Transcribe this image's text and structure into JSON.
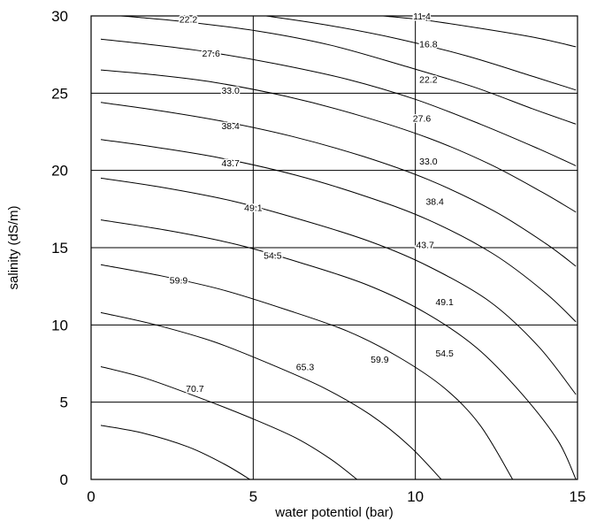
{
  "chart_data": {
    "type": "contour",
    "title": "",
    "xlabel": "water potentiol (bar)",
    "ylabel": "salinity (dS/m)",
    "xlim": [
      0,
      15
    ],
    "ylim": [
      0,
      30
    ],
    "xticks": [
      "0",
      "5",
      "10",
      "15"
    ],
    "yticks": [
      "0",
      "5",
      "10",
      "15",
      "20",
      "25",
      "30"
    ],
    "grid": true,
    "contours": [
      {
        "label": "",
        "points": [
          [
            0.3,
            3.5
          ],
          [
            1.6,
            3.0
          ],
          [
            3.0,
            2.1
          ],
          [
            4.1,
            1.0
          ],
          [
            4.9,
            0
          ]
        ]
      },
      {
        "label": "70.7",
        "points": [
          [
            0.3,
            7.3
          ],
          [
            1.6,
            6.6
          ],
          [
            3.2,
            5.4
          ],
          [
            4.9,
            4.0
          ],
          [
            6.3,
            2.7
          ],
          [
            7.4,
            1.3
          ],
          [
            8.2,
            0
          ]
        ]
      },
      {
        "label": "65.3",
        "points": [
          [
            0.3,
            10.8
          ],
          [
            2.0,
            10.0
          ],
          [
            3.8,
            8.9
          ],
          [
            5.6,
            7.4
          ],
          [
            7.2,
            5.9
          ],
          [
            8.6,
            4.2
          ],
          [
            9.8,
            2.2
          ],
          [
            10.8,
            0
          ]
        ]
      },
      {
        "label": "59.9",
        "points": [
          [
            0.3,
            13.9
          ],
          [
            2.1,
            13.2
          ],
          [
            4.0,
            12.3
          ],
          [
            6.0,
            11.0
          ],
          [
            7.9,
            9.6
          ],
          [
            9.5,
            7.9
          ],
          [
            10.9,
            5.9
          ],
          [
            12.0,
            3.5
          ],
          [
            13.0,
            0
          ]
        ]
      },
      {
        "label": "54.5",
        "points": [
          [
            0.3,
            16.8
          ],
          [
            2.4,
            16.1
          ],
          [
            4.5,
            15.2
          ],
          [
            6.5,
            14.0
          ],
          [
            8.5,
            12.6
          ],
          [
            10.3,
            10.8
          ],
          [
            11.9,
            8.5
          ],
          [
            13.3,
            5.5
          ],
          [
            14.4,
            2.5
          ],
          [
            14.95,
            0
          ]
        ]
      },
      {
        "label": "49.1",
        "points": [
          [
            0.3,
            19.5
          ],
          [
            2.2,
            18.9
          ],
          [
            4.4,
            18.0
          ],
          [
            6.5,
            16.8
          ],
          [
            8.6,
            15.4
          ],
          [
            10.4,
            13.8
          ],
          [
            12.3,
            11.5
          ],
          [
            13.8,
            8.6
          ],
          [
            14.95,
            5.5
          ]
        ]
      },
      {
        "label": "43.7",
        "points": [
          [
            0.3,
            22.0
          ],
          [
            2.0,
            21.5
          ],
          [
            4.0,
            20.8
          ],
          [
            6.3,
            19.7
          ],
          [
            8.5,
            18.3
          ],
          [
            10.4,
            16.8
          ],
          [
            12.4,
            14.6
          ],
          [
            14.0,
            12.1
          ],
          [
            14.95,
            10.2
          ]
        ]
      },
      {
        "label": "38.4",
        "points": [
          [
            0.3,
            24.4
          ],
          [
            2.0,
            23.9
          ],
          [
            4.0,
            23.2
          ],
          [
            6.2,
            22.2
          ],
          [
            8.4,
            20.9
          ],
          [
            10.4,
            19.4
          ],
          [
            12.4,
            17.4
          ],
          [
            14.0,
            15.3
          ],
          [
            14.95,
            13.8
          ]
        ]
      },
      {
        "label": "33.0",
        "points": [
          [
            0.3,
            26.5
          ],
          [
            1.9,
            26.2
          ],
          [
            3.8,
            25.7
          ],
          [
            6.0,
            24.8
          ],
          [
            8.2,
            23.6
          ],
          [
            10.4,
            22.1
          ],
          [
            12.3,
            20.4
          ],
          [
            13.9,
            18.6
          ],
          [
            14.95,
            17.3
          ]
        ]
      },
      {
        "label": "27.6",
        "points": [
          [
            0.3,
            28.5
          ],
          [
            1.6,
            28.2
          ],
          [
            3.5,
            27.7
          ],
          [
            5.7,
            26.9
          ],
          [
            7.9,
            25.9
          ],
          [
            10.0,
            24.6
          ],
          [
            12.0,
            23.0
          ],
          [
            13.8,
            21.4
          ],
          [
            14.95,
            20.3
          ]
        ]
      },
      {
        "label": "22.2",
        "points": [
          [
            0.3,
            30.1
          ],
          [
            1.5,
            29.9
          ],
          [
            3.0,
            29.6
          ],
          [
            5.2,
            29.0
          ],
          [
            7.4,
            28.1
          ],
          [
            9.6,
            26.8
          ],
          [
            11.8,
            25.4
          ],
          [
            13.6,
            24.0
          ],
          [
            14.95,
            23.0
          ]
        ]
      },
      {
        "label": "16.8",
        "points": [
          [
            5.4,
            30.0
          ],
          [
            7.3,
            29.4
          ],
          [
            9.5,
            28.5
          ],
          [
            11.6,
            27.4
          ],
          [
            13.6,
            26.1
          ],
          [
            14.95,
            25.2
          ]
        ]
      },
      {
        "label": "11.4",
        "points": [
          [
            9.0,
            30.0
          ],
          [
            10.4,
            29.7
          ],
          [
            12.0,
            29.2
          ],
          [
            13.7,
            28.6
          ],
          [
            14.95,
            28.0
          ]
        ]
      }
    ],
    "contour_labels": [
      {
        "text": "22.2",
        "x": 3.0,
        "y": 29.8
      },
      {
        "text": "27.6",
        "x": 3.7,
        "y": 27.6
      },
      {
        "text": "33.0",
        "x": 4.3,
        "y": 25.2
      },
      {
        "text": "38.4",
        "x": 4.3,
        "y": 22.9
      },
      {
        "text": "43.7",
        "x": 4.3,
        "y": 20.5
      },
      {
        "text": "49.1",
        "x": 5.0,
        "y": 17.6
      },
      {
        "text": "54.5",
        "x": 5.6,
        "y": 14.5
      },
      {
        "text": "59.9",
        "x": 2.7,
        "y": 12.9
      },
      {
        "text": "70.7",
        "x": 3.2,
        "y": 5.9
      },
      {
        "text": "65.3",
        "x": 6.6,
        "y": 7.3
      },
      {
        "text": "59.9",
        "x": 8.9,
        "y": 7.8
      },
      {
        "text": "54.5",
        "x": 10.9,
        "y": 8.2
      },
      {
        "text": "49.1",
        "x": 10.9,
        "y": 11.5
      },
      {
        "text": "43.7",
        "x": 10.3,
        "y": 15.2
      },
      {
        "text": "38.4",
        "x": 10.6,
        "y": 18.0
      },
      {
        "text": "33.0",
        "x": 10.4,
        "y": 20.6
      },
      {
        "text": "27.6",
        "x": 10.2,
        "y": 23.4
      },
      {
        "text": "22.2",
        "x": 10.4,
        "y": 25.9
      },
      {
        "text": "16.8",
        "x": 10.4,
        "y": 28.2
      },
      {
        "text": "11.4",
        "x": 10.2,
        "y": 30.0
      }
    ]
  }
}
